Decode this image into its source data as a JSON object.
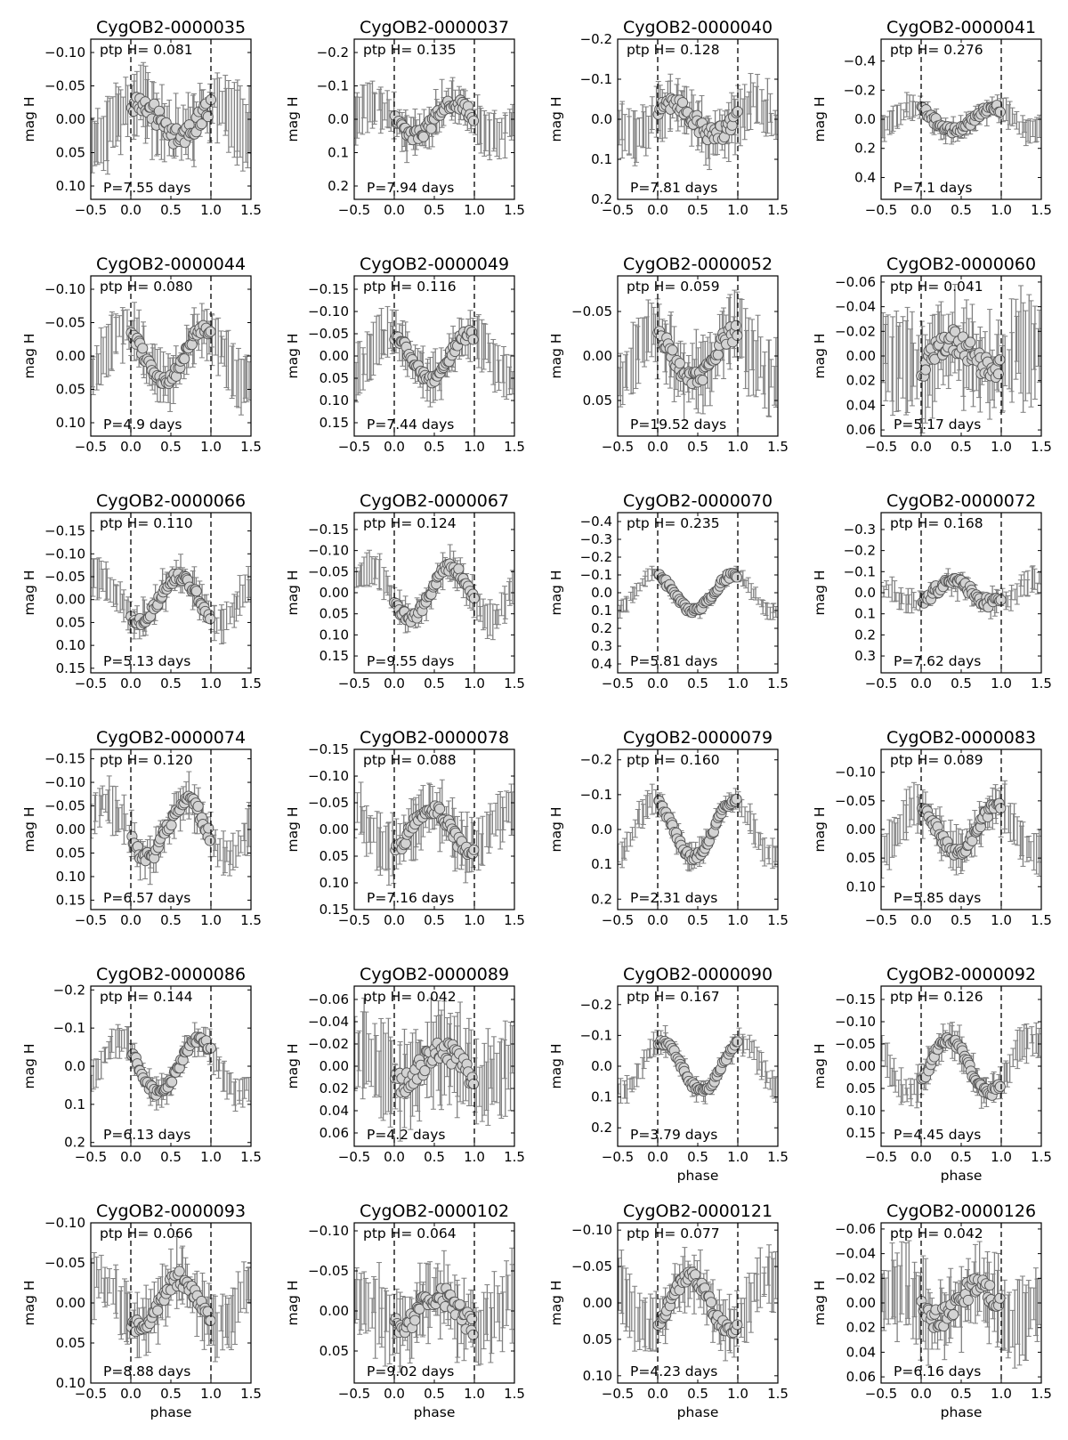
{
  "figure": {
    "xlabel": "phase",
    "ylabel": "mag H",
    "ptp_prefix": "ptp H=",
    "period_prefix": "P=",
    "period_suffix": " days",
    "colors": {
      "errorbar": "#808080",
      "marker_face": "#d3d3d3",
      "marker_edge": "#555555",
      "axes": "#000000"
    }
  },
  "chart_data": [
    {
      "type": "scatter",
      "title": "CygOB2-0000035",
      "ptp": "0.081",
      "period": "7.55",
      "ylim": [
        0.12,
        -0.12
      ],
      "yticks": [
        -0.1,
        -0.05,
        0.0,
        0.05,
        0.1
      ],
      "ydec": 2,
      "amp": 0.025,
      "phi": 0.1,
      "noise": 0.018,
      "err": 0.04,
      "xlim": [
        -0.5,
        1.5
      ],
      "xticks": [
        -0.5,
        0.0,
        0.5,
        1.0,
        1.5
      ],
      "xlabel_shown": false
    },
    {
      "type": "scatter",
      "title": "CygOB2-0000037",
      "ptp": "0.135",
      "period": "7.94",
      "ylim": [
        0.24,
        -0.24
      ],
      "yticks": [
        -0.2,
        -0.1,
        0.0,
        0.1,
        0.2
      ],
      "ydec": 1,
      "amp": 0.05,
      "phi": 0.75,
      "noise": 0.02,
      "err": 0.05,
      "xlim": [
        -0.5,
        1.5
      ],
      "xticks": [
        -0.5,
        0.0,
        0.5,
        1.0,
        1.5
      ],
      "xlabel_shown": false
    },
    {
      "type": "scatter",
      "title": "CygOB2-0000040",
      "ptp": "0.128",
      "period": "7.81",
      "ylim": [
        0.2,
        -0.2
      ],
      "yticks": [
        -0.2,
        -0.1,
        0.0,
        0.1,
        0.2
      ],
      "ydec": 1,
      "amp": 0.04,
      "phi": 0.2,
      "noise": 0.025,
      "err": 0.05,
      "xlim": [
        -0.5,
        1.5
      ],
      "xticks": [
        -0.5,
        0.0,
        0.5,
        1.0,
        1.5
      ],
      "xlabel_shown": false
    },
    {
      "type": "scatter",
      "title": "CygOB2-0000041",
      "ptp": "0.276",
      "period": "7.1",
      "ylim": [
        0.55,
        -0.55
      ],
      "yticks": [
        -0.4,
        -0.2,
        0.0,
        0.2,
        0.4
      ],
      "ydec": 1,
      "amp": 0.08,
      "phi": 0.9,
      "noise": 0.03,
      "err": 0.06,
      "xlim": [
        -0.5,
        1.5
      ],
      "xticks": [
        -0.5,
        0.0,
        0.5,
        1.0,
        1.5
      ],
      "xlabel_shown": false
    },
    {
      "type": "scatter",
      "title": "CygOB2-0000044",
      "ptp": "0.080",
      "period": "4.9",
      "ylim": [
        0.12,
        -0.12
      ],
      "yticks": [
        -0.1,
        -0.05,
        0.0,
        0.05,
        0.1
      ],
      "ydec": 2,
      "amp": 0.04,
      "phi": 0.92,
      "noise": 0.01,
      "err": 0.03,
      "xlim": [
        -0.5,
        1.5
      ],
      "xticks": [
        -0.5,
        0.0,
        0.5,
        1.0,
        1.5
      ],
      "xlabel_shown": false
    },
    {
      "type": "scatter",
      "title": "CygOB2-0000049",
      "ptp": "0.116",
      "period": "7.44",
      "ylim": [
        0.18,
        -0.18
      ],
      "yticks": [
        -0.15,
        -0.1,
        -0.05,
        0.0,
        0.05,
        0.1,
        0.15
      ],
      "ydec": 2,
      "amp": 0.05,
      "phi": 0.95,
      "noise": 0.015,
      "err": 0.04,
      "xlim": [
        -0.5,
        1.5
      ],
      "xticks": [
        -0.5,
        0.0,
        0.5,
        1.0,
        1.5
      ],
      "xlabel_shown": false
    },
    {
      "type": "scatter",
      "title": "CygOB2-0000052",
      "ptp": "0.059",
      "period": "19.52",
      "ylim": [
        0.09,
        -0.09
      ],
      "yticks": [
        -0.05,
        0.0,
        0.05
      ],
      "ydec": 2,
      "amp": 0.025,
      "phi": 0.95,
      "noise": 0.012,
      "err": 0.03,
      "xlim": [
        -0.5,
        1.5
      ],
      "xticks": [
        -0.5,
        0.0,
        0.5,
        1.0,
        1.5
      ],
      "xlabel_shown": false
    },
    {
      "type": "scatter",
      "title": "CygOB2-0000060",
      "ptp": "0.041",
      "period": "5.17",
      "ylim": [
        0.065,
        -0.065
      ],
      "yticks": [
        -0.06,
        -0.04,
        -0.02,
        0.0,
        0.02,
        0.04,
        0.06
      ],
      "ydec": 2,
      "amp": 0.012,
      "phi": 0.4,
      "noise": 0.012,
      "err": 0.03,
      "xlim": [
        -0.5,
        1.5
      ],
      "xticks": [
        -0.5,
        0.0,
        0.5,
        1.0,
        1.5
      ],
      "xlabel_shown": false
    },
    {
      "type": "scatter",
      "title": "CygOB2-0000066",
      "ptp": "0.110",
      "period": "5.13",
      "ylim": [
        0.16,
        -0.19
      ],
      "yticks": [
        -0.15,
        -0.1,
        -0.05,
        0.0,
        0.05,
        0.1,
        0.15
      ],
      "ydec": 2,
      "amp": 0.05,
      "phi": 0.6,
      "noise": 0.012,
      "err": 0.03,
      "xlim": [
        -0.5,
        1.5
      ],
      "xticks": [
        -0.5,
        0.0,
        0.5,
        1.0,
        1.5
      ],
      "xlabel_shown": false
    },
    {
      "type": "scatter",
      "title": "CygOB2-0000067",
      "ptp": "0.124",
      "period": "9.55",
      "ylim": [
        0.19,
        -0.19
      ],
      "yticks": [
        -0.15,
        -0.1,
        -0.05,
        0.0,
        0.05,
        0.1,
        0.15
      ],
      "ydec": 2,
      "amp": 0.06,
      "phi": 0.7,
      "noise": 0.012,
      "err": 0.03,
      "xlim": [
        -0.5,
        1.5
      ],
      "xticks": [
        -0.5,
        0.0,
        0.5,
        1.0,
        1.5
      ],
      "xlabel_shown": false
    },
    {
      "type": "scatter",
      "title": "CygOB2-0000070",
      "ptp": "0.235",
      "period": "5.81",
      "ylim": [
        0.45,
        -0.45
      ],
      "yticks": [
        -0.4,
        -0.3,
        -0.2,
        -0.1,
        0.0,
        0.1,
        0.2,
        0.3,
        0.4
      ],
      "ydec": 1,
      "amp": 0.1,
      "phi": 0.95,
      "noise": 0.02,
      "err": 0.03,
      "xlim": [
        -0.5,
        1.5
      ],
      "xticks": [
        -0.5,
        0.0,
        0.5,
        1.0,
        1.5
      ],
      "xlabel_shown": false
    },
    {
      "type": "scatter",
      "title": "CygOB2-0000072",
      "ptp": "0.168",
      "period": "7.62",
      "ylim": [
        0.38,
        -0.38
      ],
      "yticks": [
        -0.3,
        -0.2,
        -0.1,
        0.0,
        0.1,
        0.2,
        0.3
      ],
      "ydec": 1,
      "amp": 0.05,
      "phi": 0.4,
      "noise": 0.03,
      "err": 0.04,
      "xlim": [
        -0.5,
        1.5
      ],
      "xticks": [
        -0.5,
        0.0,
        0.5,
        1.0,
        1.5
      ],
      "xlabel_shown": false
    },
    {
      "type": "scatter",
      "title": "CygOB2-0000074",
      "ptp": "0.120",
      "period": "6.57",
      "ylim": [
        0.17,
        -0.17
      ],
      "yticks": [
        -0.15,
        -0.1,
        -0.05,
        0.0,
        0.05,
        0.1,
        0.15
      ],
      "ydec": 2,
      "amp": 0.06,
      "phi": 0.7,
      "noise": 0.015,
      "err": 0.035,
      "xlim": [
        -0.5,
        1.5
      ],
      "xticks": [
        -0.5,
        0.0,
        0.5,
        1.0,
        1.5
      ],
      "xlabel_shown": false
    },
    {
      "type": "scatter",
      "title": "CygOB2-0000078",
      "ptp": "0.088",
      "period": "7.16",
      "ylim": [
        0.15,
        -0.15
      ],
      "yticks": [
        -0.15,
        -0.1,
        -0.05,
        0.0,
        0.05,
        0.1,
        0.15
      ],
      "ydec": 2,
      "amp": 0.04,
      "phi": 0.45,
      "noise": 0.015,
      "err": 0.04,
      "xlim": [
        -0.5,
        1.5
      ],
      "xticks": [
        -0.5,
        0.0,
        0.5,
        1.0,
        1.5
      ],
      "xlabel_shown": false
    },
    {
      "type": "scatter",
      "title": "CygOB2-0000079",
      "ptp": "0.160",
      "period": "2.31",
      "ylim": [
        0.23,
        -0.23
      ],
      "yticks": [
        -0.2,
        -0.1,
        0.0,
        0.1,
        0.2
      ],
      "ydec": 1,
      "amp": 0.08,
      "phi": 0.95,
      "noise": 0.012,
      "err": 0.03,
      "xlim": [
        -0.5,
        1.5
      ],
      "xticks": [
        -0.5,
        0.0,
        0.5,
        1.0,
        1.5
      ],
      "xlabel_shown": false
    },
    {
      "type": "scatter",
      "title": "CygOB2-0000083",
      "ptp": "0.089",
      "period": "5.85",
      "ylim": [
        0.14,
        -0.14
      ],
      "yticks": [
        -0.1,
        -0.05,
        0.0,
        0.05,
        0.1
      ],
      "ydec": 2,
      "amp": 0.04,
      "phi": 0.95,
      "noise": 0.01,
      "err": 0.03,
      "xlim": [
        -0.5,
        1.5
      ],
      "xticks": [
        -0.5,
        0.0,
        0.5,
        1.0,
        1.5
      ],
      "xlabel_shown": false
    },
    {
      "type": "scatter",
      "title": "CygOB2-0000086",
      "ptp": "0.144",
      "period": "6.13",
      "ylim": [
        0.21,
        -0.21
      ],
      "yticks": [
        -0.2,
        -0.1,
        0.0,
        0.1,
        0.2
      ],
      "ydec": 1,
      "amp": 0.07,
      "phi": 0.85,
      "noise": 0.012,
      "err": 0.03,
      "xlim": [
        -0.5,
        1.5
      ],
      "xticks": [
        -0.5,
        0.0,
        0.5,
        1.0,
        1.5
      ],
      "xlabel_shown": false
    },
    {
      "type": "scatter",
      "title": "CygOB2-0000089",
      "ptp": "0.042",
      "period": "4.2",
      "ylim": [
        0.072,
        -0.072
      ],
      "yticks": [
        -0.06,
        -0.04,
        -0.02,
        0.0,
        0.02,
        0.04,
        0.06
      ],
      "ydec": 2,
      "amp": 0.015,
      "phi": 0.6,
      "noise": 0.012,
      "err": 0.03,
      "xlim": [
        -0.5,
        1.5
      ],
      "xticks": [
        -0.5,
        0.0,
        0.5,
        1.0,
        1.5
      ],
      "xlabel_shown": false
    },
    {
      "type": "scatter",
      "title": "CygOB2-0000090",
      "ptp": "0.167",
      "period": "3.79",
      "ylim": [
        0.26,
        -0.26
      ],
      "yticks": [
        -0.2,
        -0.1,
        0.0,
        0.1,
        0.2
      ],
      "ydec": 1,
      "amp": 0.08,
      "phi": 0.05,
      "noise": 0.012,
      "err": 0.03,
      "xlim": [
        -0.5,
        1.5
      ],
      "xticks": [
        -0.5,
        0.0,
        0.5,
        1.0,
        1.5
      ],
      "xlabel_shown": true
    },
    {
      "type": "scatter",
      "title": "CygOB2-0000092",
      "ptp": "0.126",
      "period": "4.45",
      "ylim": [
        0.18,
        -0.18
      ],
      "yticks": [
        -0.15,
        -0.1,
        -0.05,
        0.0,
        0.05,
        0.1,
        0.15
      ],
      "ydec": 2,
      "amp": 0.06,
      "phi": 0.35,
      "noise": 0.012,
      "err": 0.03,
      "xlim": [
        -0.5,
        1.5
      ],
      "xticks": [
        -0.5,
        0.0,
        0.5,
        1.0,
        1.5
      ],
      "xlabel_shown": true
    },
    {
      "type": "scatter",
      "title": "CygOB2-0000093",
      "ptp": "0.066",
      "period": "8.88",
      "ylim": [
        0.1,
        -0.1
      ],
      "yticks": [
        -0.1,
        -0.05,
        0.0,
        0.05,
        0.1
      ],
      "ydec": 2,
      "amp": 0.03,
      "phi": 0.6,
      "noise": 0.012,
      "err": 0.03,
      "xlim": [
        -0.5,
        1.5
      ],
      "xticks": [
        -0.5,
        0.0,
        0.5,
        1.0,
        1.5
      ],
      "xlabel_shown": true
    },
    {
      "type": "scatter",
      "title": "CygOB2-0000102",
      "ptp": "0.064",
      "period": "9.02",
      "ylim": [
        0.09,
        -0.11
      ],
      "yticks": [
        -0.1,
        -0.05,
        0.0,
        0.05
      ],
      "ydec": 2,
      "amp": 0.02,
      "phi": 0.55,
      "noise": 0.015,
      "err": 0.035,
      "xlim": [
        -0.5,
        1.5
      ],
      "xticks": [
        -0.5,
        0.0,
        0.5,
        1.0,
        1.5
      ],
      "xlabel_shown": true
    },
    {
      "type": "scatter",
      "title": "CygOB2-0000121",
      "ptp": "0.077",
      "period": "4.23",
      "ylim": [
        0.11,
        -0.11
      ],
      "yticks": [
        -0.1,
        -0.05,
        0.0,
        0.05,
        0.1
      ],
      "ydec": 2,
      "amp": 0.035,
      "phi": 0.4,
      "noise": 0.01,
      "err": 0.03,
      "xlim": [
        -0.5,
        1.5
      ],
      "xticks": [
        -0.5,
        0.0,
        0.5,
        1.0,
        1.5
      ],
      "xlabel_shown": true
    },
    {
      "type": "scatter",
      "title": "CygOB2-0000126",
      "ptp": "0.042",
      "period": "6.16",
      "ylim": [
        0.065,
        -0.065
      ],
      "yticks": [
        -0.06,
        -0.04,
        -0.02,
        0.0,
        0.02,
        0.04,
        0.06
      ],
      "ydec": 2,
      "amp": 0.013,
      "phi": 0.7,
      "noise": 0.01,
      "err": 0.025,
      "xlim": [
        -0.5,
        1.5
      ],
      "xticks": [
        -0.5,
        0.0,
        0.5,
        1.0,
        1.5
      ],
      "xlabel_shown": true
    }
  ]
}
